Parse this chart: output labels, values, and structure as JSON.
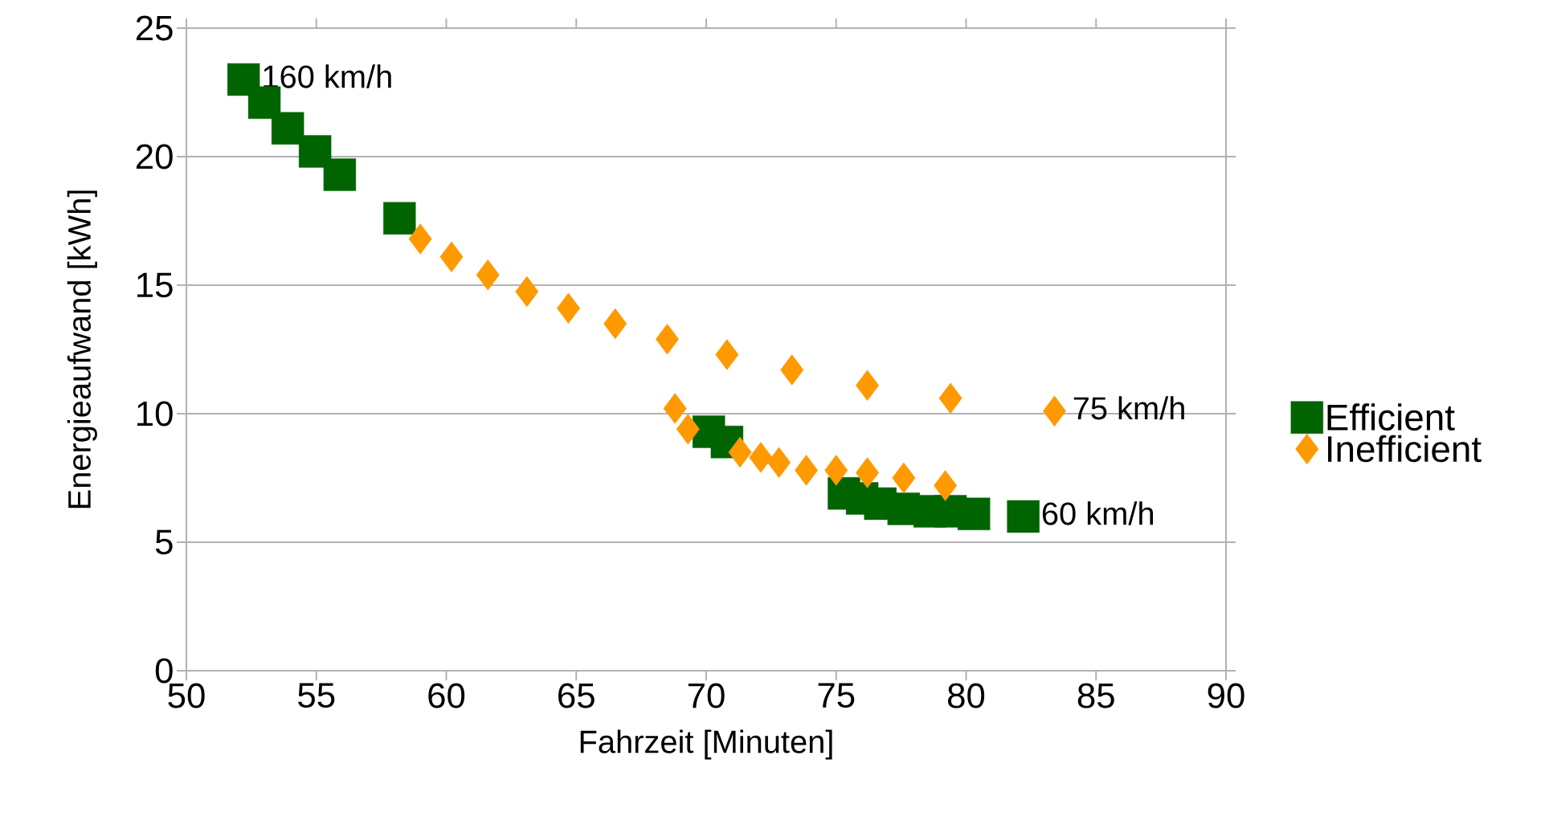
{
  "chart_data": {
    "type": "scatter",
    "xlabel": "Fahrzeit [Minuten]",
    "ylabel": "Energieaufwand  [kWh]",
    "xlim": [
      50,
      90
    ],
    "xticks": [
      50,
      55,
      60,
      65,
      70,
      75,
      80,
      85,
      90
    ],
    "ylim": [
      0,
      25
    ],
    "yticks": [
      0,
      5,
      10,
      15,
      20,
      25
    ],
    "grid": "y",
    "legend": "right",
    "series": [
      {
        "name": "Efficient",
        "color": "#006400",
        "marker": "square",
        "x": [
          52.2,
          53.0,
          53.9,
          54.95,
          55.9,
          58.2,
          70.1,
          70.8,
          75.3,
          76.0,
          76.7,
          77.6,
          78.6,
          79.4,
          80.3,
          82.2
        ],
        "values": [
          23.0,
          22.1,
          21.1,
          20.2,
          19.3,
          17.6,
          9.3,
          8.9,
          6.9,
          6.7,
          6.5,
          6.3,
          6.2,
          6.2,
          6.1,
          6.0
        ]
      },
      {
        "name": "Inefficient",
        "color": "#ff9900",
        "marker": "diamond",
        "x": [
          59.0,
          60.2,
          61.6,
          63.1,
          64.7,
          66.5,
          68.5,
          70.8,
          73.3,
          76.2,
          79.4,
          83.4,
          68.8,
          69.3,
          71.3,
          72.1,
          72.8,
          73.85,
          75.0,
          76.2,
          77.6,
          79.2
        ],
        "values": [
          16.8,
          16.1,
          15.4,
          14.75,
          14.1,
          13.5,
          12.9,
          12.3,
          11.7,
          11.1,
          10.6,
          10.1,
          10.2,
          9.4,
          8.5,
          8.3,
          8.1,
          7.8,
          7.8,
          7.7,
          7.5,
          7.2
        ]
      }
    ],
    "annotations": [
      {
        "text": "160 km/h",
        "x": 52.2,
        "y": 23.0
      },
      {
        "text": "75 km/h",
        "x": 83.4,
        "y": 10.1
      },
      {
        "text": "60 km/h",
        "x": 82.2,
        "y": 6.0
      }
    ]
  }
}
